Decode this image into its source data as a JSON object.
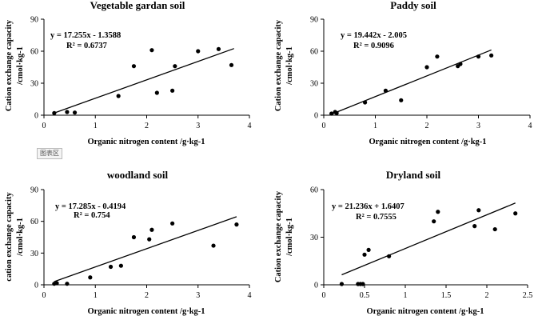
{
  "chart_area_label": "图表区",
  "chart_data": [
    {
      "type": "scatter",
      "title": "Vegetable gardan soil",
      "xlabel": "Organic nitrogen content  /g·kg-1",
      "ylabel_line1": "Cation exchange capacity",
      "ylabel_line2": "/cmol·kg-1",
      "xlim": [
        0,
        4
      ],
      "xticks": [
        0,
        1,
        2,
        3,
        4
      ],
      "xtick_labels": [
        "0",
        "1",
        "2",
        "3",
        "4"
      ],
      "ylim": [
        0,
        90
      ],
      "yticks": [
        0,
        30,
        60,
        90
      ],
      "ytick_labels": [
        "0",
        "30",
        "60",
        "90"
      ],
      "equation": "y = 17.255x - 1.3588",
      "r2": "R² = 0.6737",
      "trendline": {
        "slope": 17.255,
        "intercept": -1.3588,
        "x_from": 0.2,
        "x_to": 3.7
      },
      "points": [
        [
          0.2,
          2
        ],
        [
          0.45,
          3
        ],
        [
          0.6,
          2.5
        ],
        [
          1.45,
          18
        ],
        [
          1.75,
          46
        ],
        [
          2.1,
          61
        ],
        [
          2.2,
          21
        ],
        [
          2.5,
          23
        ],
        [
          2.55,
          46
        ],
        [
          3.0,
          60
        ],
        [
          3.4,
          62
        ],
        [
          3.65,
          47
        ]
      ]
    },
    {
      "type": "scatter",
      "title": "Paddy soil",
      "xlabel": "Organic nitrogen content  /g·kg-1",
      "ylabel_line1": "Cation exchange capacity",
      "ylabel_line2": "/cmol·kg-1",
      "xlim": [
        0,
        4
      ],
      "xticks": [
        0,
        1,
        2,
        3,
        4
      ],
      "xtick_labels": [
        "0",
        "1",
        "2",
        "3",
        "4"
      ],
      "ylim": [
        0,
        90
      ],
      "yticks": [
        0,
        30,
        60,
        90
      ],
      "ytick_labels": [
        "0",
        "30",
        "60",
        "90"
      ],
      "equation": "y = 19.442x - 2.005",
      "r2": "R² = 0.9096",
      "trendline": {
        "slope": 19.442,
        "intercept": -2.005,
        "x_from": 0.15,
        "x_to": 3.25
      },
      "points": [
        [
          0.15,
          1.5
        ],
        [
          0.22,
          3
        ],
        [
          0.25,
          2
        ],
        [
          0.8,
          12
        ],
        [
          1.2,
          23
        ],
        [
          1.5,
          14
        ],
        [
          2.0,
          45
        ],
        [
          2.2,
          55
        ],
        [
          2.6,
          46
        ],
        [
          2.65,
          48
        ],
        [
          3.0,
          55
        ],
        [
          3.25,
          56
        ]
      ]
    },
    {
      "type": "scatter",
      "title": "woodland soil",
      "xlabel": "Organic nitrogen content  /g·kg-1",
      "ylabel_line1": "cation exchange capacity",
      "ylabel_line2": "/cmol·kg-1",
      "xlim": [
        0,
        4
      ],
      "xticks": [
        0,
        1,
        2,
        3,
        4
      ],
      "xtick_labels": [
        "0",
        "1",
        "2",
        "3",
        "4"
      ],
      "ylim": [
        0,
        90
      ],
      "yticks": [
        0,
        30,
        60,
        90
      ],
      "ytick_labels": [
        "0",
        "30",
        "60",
        "90"
      ],
      "equation": "y = 17.285x - 0.4194",
      "r2": "R² = 0.754",
      "trendline": {
        "slope": 17.285,
        "intercept": -0.4194,
        "x_from": 0.2,
        "x_to": 3.75
      },
      "points": [
        [
          0.2,
          1
        ],
        [
          0.25,
          1.5
        ],
        [
          0.45,
          1
        ],
        [
          0.9,
          7
        ],
        [
          1.3,
          17
        ],
        [
          1.5,
          18
        ],
        [
          1.75,
          45
        ],
        [
          2.05,
          43
        ],
        [
          2.1,
          52
        ],
        [
          2.5,
          58
        ],
        [
          3.3,
          37
        ],
        [
          3.75,
          57
        ]
      ]
    },
    {
      "type": "scatter",
      "title": "Dryland soil",
      "xlabel": "Organic nitrogen content  /g·kg-1",
      "ylabel_line1": "Cation exchange capacity",
      "ylabel_line2": "/cmol·kg-1",
      "xlim": [
        0,
        2.5
      ],
      "xticks": [
        0,
        0.5,
        1,
        1.5,
        2,
        2.5
      ],
      "xtick_labels": [
        "0",
        "0.5",
        "1",
        "1.5",
        "2",
        "2.5"
      ],
      "ylim": [
        0,
        60
      ],
      "yticks": [
        0,
        30,
        60
      ],
      "ytick_labels": [
        "0",
        "30",
        "60"
      ],
      "equation": "y = 21.236x + 1.6407",
      "r2": "R² = 0.7555",
      "trendline": {
        "slope": 21.236,
        "intercept": 1.6407,
        "x_from": 0.22,
        "x_to": 2.35
      },
      "points": [
        [
          0.22,
          0.5
        ],
        [
          0.42,
          0.5
        ],
        [
          0.45,
          0.5
        ],
        [
          0.48,
          0.5
        ],
        [
          0.5,
          19
        ],
        [
          0.55,
          22
        ],
        [
          0.8,
          18
        ],
        [
          1.35,
          40
        ],
        [
          1.4,
          46
        ],
        [
          1.85,
          37
        ],
        [
          1.9,
          47
        ],
        [
          2.1,
          35
        ],
        [
          2.35,
          45
        ]
      ]
    }
  ]
}
